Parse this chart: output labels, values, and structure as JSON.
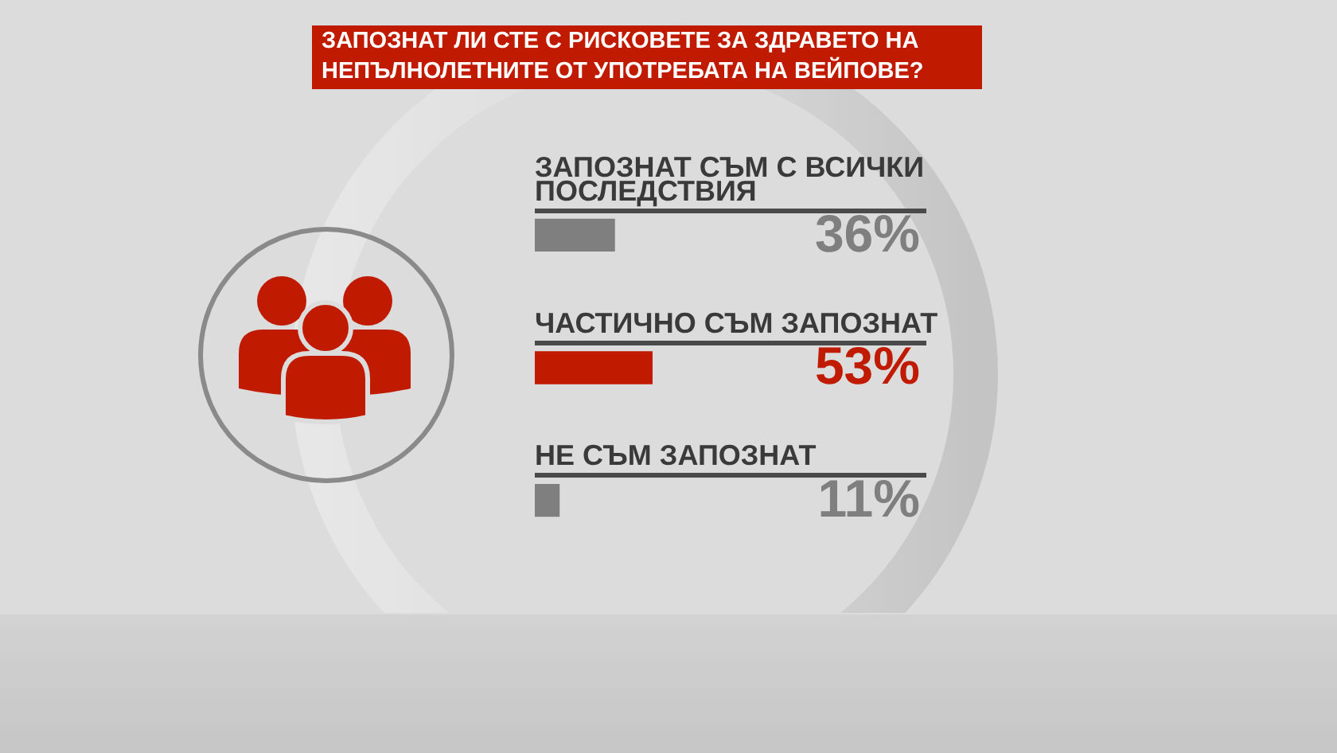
{
  "chart_data": {
    "type": "bar",
    "orientation": "horizontal",
    "title": "ЗАПОЗНАТ ЛИ СТЕ С РИСКОВЕТЕ ЗА ЗДРАВЕТО НА НЕПЪЛНОЛЕТНИТЕ ОТ УПОТРЕБАТА НА ВЕЙПОВЕ?",
    "categories": [
      "ЗАПОЗНАТ СЪМ С ВСИЧКИ ПОСЛЕДСТВИЯ",
      "ЧАСТИЧНО СЪМ ЗАПОЗНАТ",
      "НЕ СЪМ ЗАПОЗНАТ"
    ],
    "values": [
      36,
      53,
      11
    ],
    "colors": [
      "#7f7f7f",
      "#c01a00",
      "#7f7f7f"
    ],
    "value_labels": [
      "36%",
      "53%",
      "11%"
    ],
    "tick_labels": "y"
  }
}
